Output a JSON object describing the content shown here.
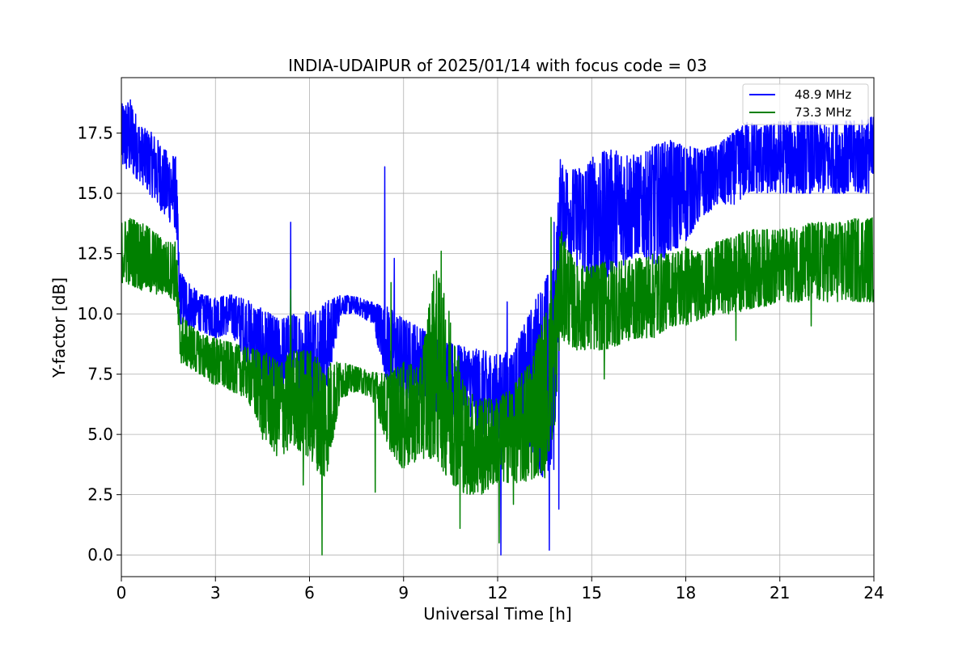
{
  "chart_data": {
    "type": "line",
    "title": "INDIA-UDAIPUR of 2025/01/14 with focus code = 03",
    "xlabel": "Universal Time [h]",
    "ylabel": "Y-factor [dB]",
    "xlim": [
      0,
      24
    ],
    "ylim": [
      -0.9,
      19.8
    ],
    "xticks": [
      0,
      3,
      6,
      9,
      12,
      15,
      18,
      21,
      24
    ],
    "xtick_labels": [
      "0",
      "3",
      "6",
      "9",
      "12",
      "15",
      "18",
      "21",
      "24"
    ],
    "yticks": [
      0,
      2.5,
      5,
      7.5,
      10,
      12.5,
      15,
      17.5
    ],
    "ytick_labels": [
      "0.0",
      "2.5",
      "5.0",
      "7.5",
      "10.0",
      "12.5",
      "15.0",
      "17.5"
    ],
    "grid": true,
    "legend_position": "top-right",
    "series": [
      {
        "name": "48.9 MHz",
        "color": "#0000ff",
        "envelope": {
          "x": [
            0,
            0.3,
            0.6,
            1.0,
            1.4,
            1.75,
            1.85,
            2.5,
            3.0,
            3.5,
            4.0,
            4.5,
            5.0,
            5.5,
            6.0,
            6.5,
            7.0,
            7.5,
            8.0,
            8.5,
            9.0,
            9.5,
            10.0,
            10.5,
            11.0,
            11.5,
            12.0,
            12.5,
            13.0,
            13.5,
            13.8,
            14.0,
            14.5,
            15.0,
            15.5,
            16.0,
            16.5,
            17.0,
            17.5,
            18.0,
            18.5,
            19.0,
            19.5,
            20.0,
            20.5,
            21.0,
            21.5,
            22.0,
            22.5,
            23.0,
            23.5,
            24.0
          ],
          "min": [
            16.0,
            15.8,
            15.5,
            14.8,
            14.0,
            13.5,
            9.6,
            9.3,
            9.0,
            9.2,
            8.0,
            7.0,
            6.5,
            6.5,
            6.2,
            6.5,
            10.0,
            10.0,
            9.6,
            7.0,
            6.5,
            6.5,
            6.0,
            5.5,
            6.0,
            5.0,
            4.5,
            4.5,
            4.5,
            3.0,
            3.5,
            13.0,
            12.0,
            11.0,
            11.5,
            12.0,
            12.5,
            12.0,
            12.5,
            13.0,
            14.0,
            14.5,
            14.5,
            15.0,
            15.0,
            15.0,
            15.0,
            15.0,
            15.0,
            15.0,
            15.0,
            15.0
          ],
          "max": [
            18.7,
            18.9,
            17.8,
            17.5,
            16.8,
            16.5,
            11.8,
            10.8,
            10.7,
            10.8,
            10.6,
            10.2,
            9.8,
            10.0,
            10.2,
            10.5,
            10.8,
            10.7,
            10.5,
            10.3,
            9.8,
            9.5,
            9.0,
            8.8,
            8.6,
            8.5,
            8.3,
            8.5,
            10.0,
            11.5,
            12.0,
            16.2,
            16.0,
            16.5,
            16.8,
            16.8,
            16.5,
            17.0,
            17.2,
            17.0,
            16.8,
            17.0,
            17.5,
            18.0,
            17.8,
            18.0,
            18.0,
            18.0,
            17.8,
            18.0,
            18.0,
            18.2
          ]
        },
        "spikes": [
          {
            "x": 5.4,
            "y": 13.8
          },
          {
            "x": 6.3,
            "y": 5.5
          },
          {
            "x": 8.4,
            "y": 16.1
          },
          {
            "x": 8.7,
            "y": 12.3
          },
          {
            "x": 10.0,
            "y": 4.8
          },
          {
            "x": 12.1,
            "y": 0.0
          },
          {
            "x": 12.3,
            "y": 10.5
          },
          {
            "x": 13.5,
            "y": 3.3
          },
          {
            "x": 13.65,
            "y": 0.2
          },
          {
            "x": 13.8,
            "y": 13.8
          },
          {
            "x": 13.95,
            "y": 1.9
          },
          {
            "x": 14.0,
            "y": 16.4
          }
        ]
      },
      {
        "name": "73.3 MHz",
        "color": "#008000",
        "envelope": {
          "x": [
            0,
            0.3,
            0.6,
            1.0,
            1.4,
            1.75,
            1.85,
            2.5,
            3.0,
            3.5,
            4.0,
            4.5,
            5.0,
            5.5,
            6.0,
            6.5,
            7.0,
            7.5,
            8.0,
            8.5,
            9.0,
            9.5,
            10.0,
            10.5,
            11.0,
            11.5,
            12.0,
            12.5,
            13.0,
            13.5,
            13.8,
            14.0,
            14.5,
            15.0,
            15.5,
            16.0,
            16.5,
            17.0,
            17.5,
            18.0,
            18.5,
            19.0,
            19.5,
            20.0,
            20.5,
            21.0,
            21.5,
            22.0,
            22.5,
            23.0,
            23.5,
            24.0
          ],
          "min": [
            11.3,
            11.2,
            11.0,
            10.8,
            10.8,
            10.5,
            8.0,
            7.5,
            7.0,
            6.8,
            6.5,
            5.0,
            4.0,
            4.5,
            4.0,
            3.0,
            6.5,
            6.8,
            6.5,
            4.5,
            3.5,
            4.0,
            4.0,
            3.0,
            2.5,
            2.5,
            3.0,
            3.0,
            3.0,
            3.5,
            5.0,
            9.0,
            8.5,
            8.5,
            8.5,
            8.8,
            9.0,
            9.0,
            9.5,
            9.5,
            9.8,
            10.0,
            10.0,
            10.2,
            10.3,
            10.5,
            10.5,
            10.5,
            10.5,
            10.5,
            10.5,
            10.5
          ],
          "max": [
            13.8,
            14.0,
            13.8,
            13.5,
            13.0,
            13.0,
            10.0,
            9.2,
            9.0,
            8.8,
            8.6,
            8.5,
            8.0,
            8.5,
            8.5,
            8.0,
            8.0,
            7.8,
            7.6,
            7.5,
            8.0,
            7.8,
            12.0,
            10.0,
            6.8,
            6.5,
            6.5,
            7.0,
            8.0,
            10.0,
            11.0,
            13.5,
            12.0,
            12.0,
            12.2,
            12.2,
            12.3,
            12.5,
            12.5,
            12.8,
            12.5,
            13.0,
            13.2,
            13.5,
            13.5,
            13.5,
            13.6,
            13.8,
            13.8,
            13.8,
            14.0,
            14.0
          ]
        },
        "spikes": [
          {
            "x": 4.5,
            "y": 4.8
          },
          {
            "x": 5.4,
            "y": 11.0
          },
          {
            "x": 5.8,
            "y": 2.9
          },
          {
            "x": 6.4,
            "y": 0.0
          },
          {
            "x": 8.1,
            "y": 2.6
          },
          {
            "x": 8.6,
            "y": 11.3
          },
          {
            "x": 10.2,
            "y": 12.6
          },
          {
            "x": 10.8,
            "y": 1.1
          },
          {
            "x": 12.05,
            "y": 0.5
          },
          {
            "x": 12.5,
            "y": 2.1
          },
          {
            "x": 13.5,
            "y": 3.2
          },
          {
            "x": 13.7,
            "y": 14.0
          },
          {
            "x": 15.4,
            "y": 7.3
          },
          {
            "x": 19.6,
            "y": 8.9
          },
          {
            "x": 22.0,
            "y": 9.5
          }
        ]
      }
    ]
  }
}
